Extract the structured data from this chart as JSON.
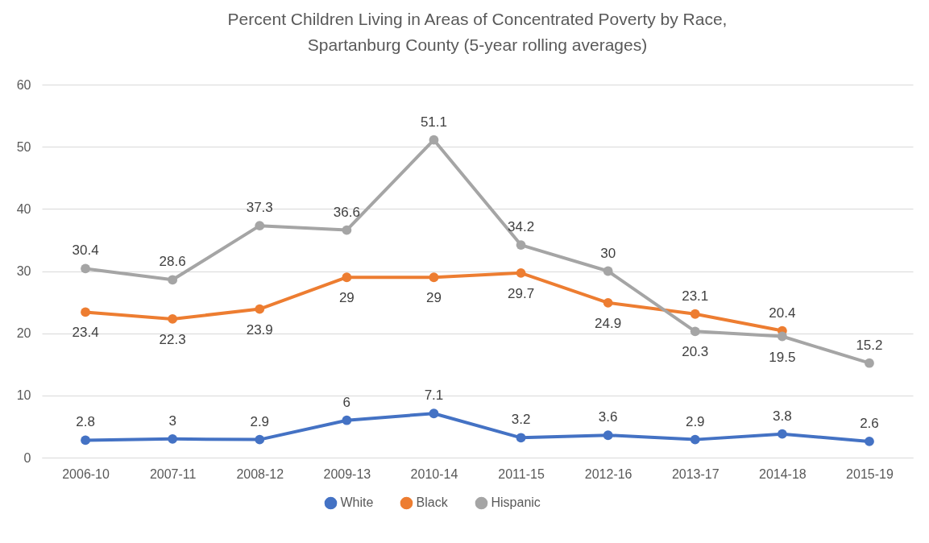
{
  "chart_data": {
    "type": "line",
    "title": "Percent Children Living in Areas of Concentrated Poverty by Race,\nSpartanburg County (5-year rolling averages)",
    "categories": [
      "2006-10",
      "2007-11",
      "2008-12",
      "2009-13",
      "2010-14",
      "2011-15",
      "2012-16",
      "2013-17",
      "2014-18",
      "2015-19"
    ],
    "series": [
      {
        "name": "White",
        "color": "#4472c4",
        "values": [
          2.8,
          3,
          2.9,
          6,
          7.1,
          3.2,
          3.6,
          2.9,
          3.8,
          2.6
        ]
      },
      {
        "name": "Black",
        "color": "#ed7d31",
        "values": [
          23.4,
          22.3,
          23.9,
          29,
          29,
          29.7,
          24.9,
          23.1,
          20.4,
          null
        ]
      },
      {
        "name": "Hispanic",
        "color": "#a5a5a5",
        "values": [
          30.4,
          28.6,
          37.3,
          36.6,
          51.1,
          34.2,
          30,
          20.3,
          19.5,
          15.2
        ]
      }
    ],
    "ylim": [
      0,
      60
    ],
    "yticks": [
      0,
      10,
      20,
      30,
      40,
      50,
      60
    ],
    "grid": "y",
    "legend": "bottom",
    "marker": "circle",
    "line_style": "solid",
    "data_labels": true
  }
}
